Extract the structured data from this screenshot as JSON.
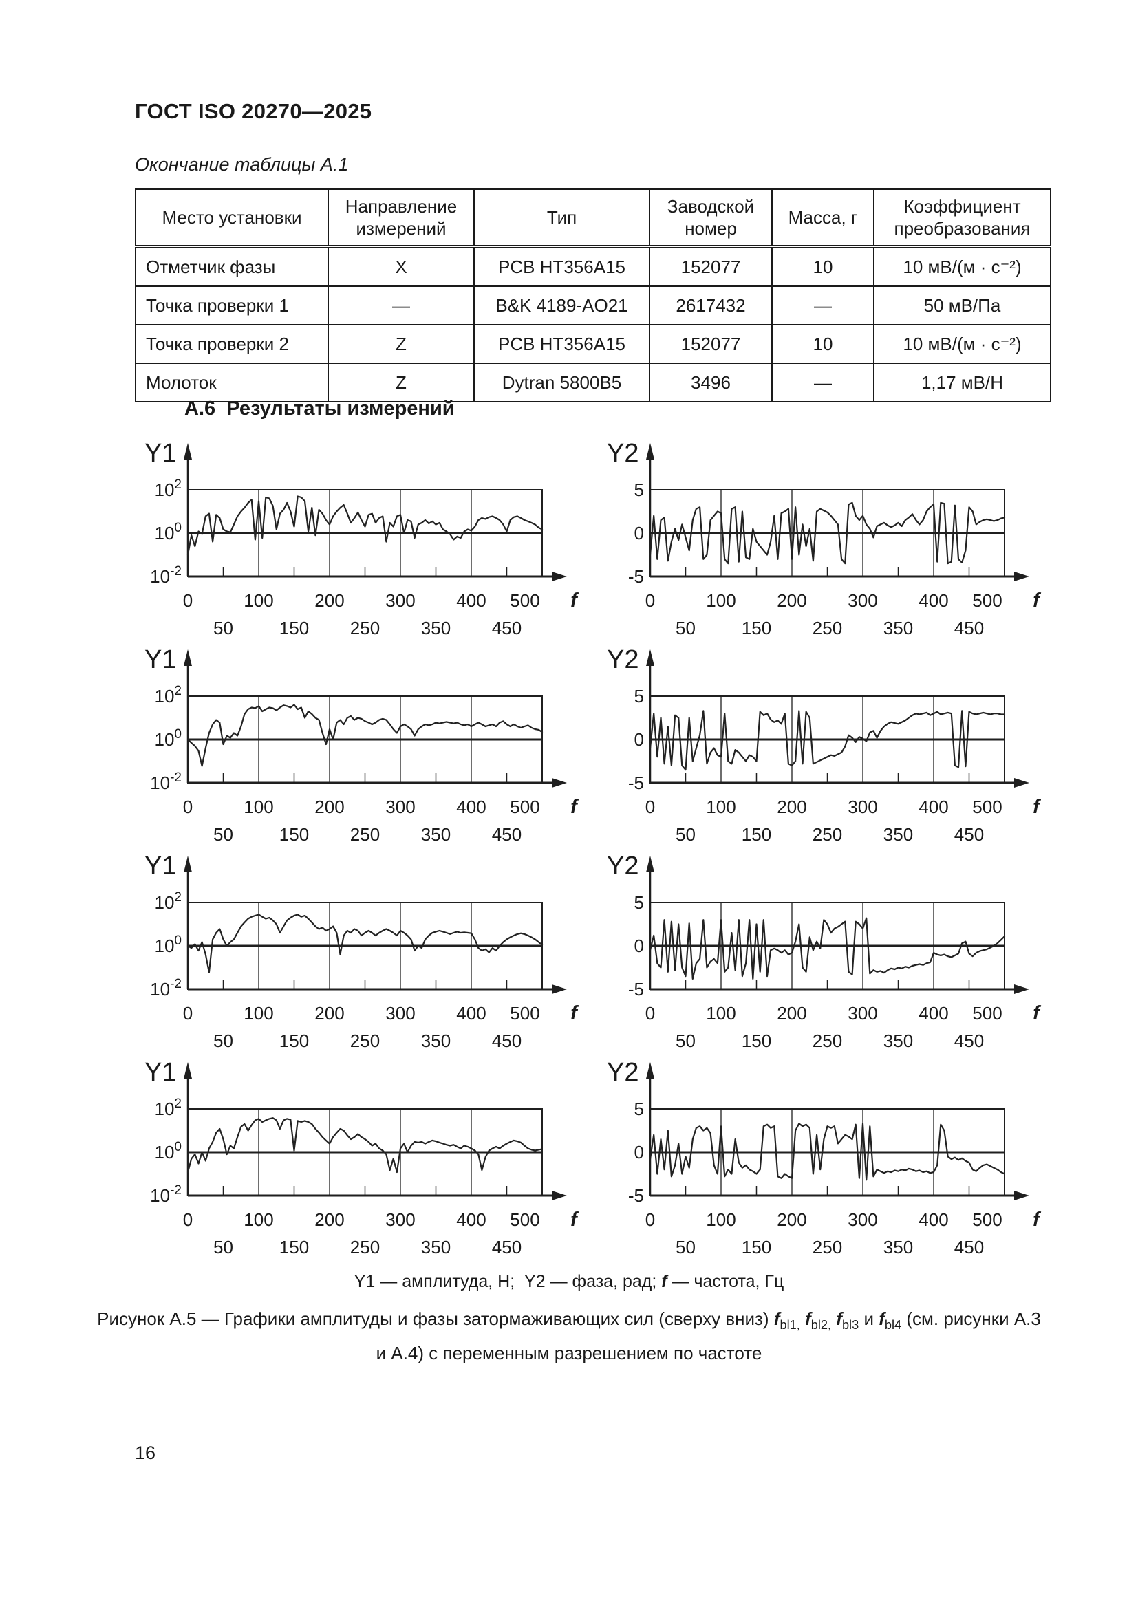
{
  "page": {
    "standard_number": "ГОСТ ISO 20270—2025",
    "table_continuation": "Окончание таблицы А.1",
    "section_heading": "А.6  Результаты измерений",
    "page_number": "16"
  },
  "table": {
    "headers": [
      "Место установки",
      "Направление измерений",
      "Тип",
      "Заводской номер",
      "Масса, г",
      "Коэффициент преобразования"
    ],
    "rows": [
      [
        "Отметчик фазы",
        "X",
        "PCB HT356A15",
        "152077",
        "10",
        "10 мВ/(м · с⁻²)"
      ],
      [
        "Точка проверки 1",
        "—",
        "B&K 4189-AO21",
        "2617432",
        "—",
        "50 мВ/Па"
      ],
      [
        "Точка проверки 2",
        "Z",
        "PCB HT356A15",
        "152077",
        "10",
        "10 мВ/(м · с⁻²)"
      ],
      [
        "Молоток",
        "Z",
        "Dytran 5800B5",
        "3496",
        "—",
        "1,17 мВ/Н"
      ]
    ]
  },
  "legend": {
    "p1": "Y1 — амплитуда, Н;  Y2 — фаза, рад; ",
    "f_symbol": "f",
    "p2": " — частота, Гц"
  },
  "caption": {
    "p1": "Рисунок А.5 — Графики амплитуды и фазы затормаживающих сил (сверху вниз) ",
    "f_symbol": "f",
    "sub1": "bl1,",
    "sep1": " ",
    "sub2": "bl2,",
    "sep2": " ",
    "sub3": "bl3",
    "sep3": " и ",
    "sub4": "bl4",
    "p2": " (см. рисунки А.3",
    "line2": "и А.4) с переменным разрешением по частоте"
  },
  "chart_data": [
    {
      "id": "fbl1-amplitude",
      "type": "line",
      "title": "Y1",
      "ylabel": "амплитуда, Н",
      "y_scale": "log",
      "ylim": [
        0.01,
        100
      ],
      "ytick_labels": [
        "10^2",
        "10^0",
        "10^-2"
      ],
      "xlabel": "f",
      "xlim": [
        0,
        500
      ],
      "x_step": 5,
      "xticks_major": [
        0,
        100,
        200,
        300,
        400,
        500
      ],
      "xticks_minor": [
        50,
        150,
        250,
        350,
        450
      ],
      "values": [
        0.1,
        0.8,
        0.25,
        1.2,
        0.9,
        6,
        8,
        0.4,
        7,
        5,
        1.5,
        1.2,
        1.1,
        2.5,
        6,
        10,
        15,
        25,
        35,
        0.5,
        30,
        0.6,
        45,
        40,
        18,
        1.5,
        8,
        12,
        25,
        10,
        2,
        50,
        45,
        30,
        1.2,
        15,
        0.8,
        12,
        8,
        4,
        2.5,
        6,
        10,
        15,
        20,
        8,
        3,
        5,
        9,
        4,
        2,
        7,
        8,
        3,
        5,
        6,
        0.4,
        3,
        2,
        6,
        7,
        1,
        4,
        3.5,
        0.6,
        2.5,
        3,
        4,
        2.8,
        3.5,
        2.5,
        3,
        1.5,
        1.2,
        0.9,
        0.5,
        0.7,
        0.6,
        1.2,
        1.5,
        1.3,
        2,
        4,
        5,
        4.5,
        5.5,
        6,
        5,
        4,
        2.5,
        1.2,
        4,
        5.5,
        6,
        5,
        4,
        3.5,
        3,
        2.5,
        1.8,
        1.5
      ]
    },
    {
      "id": "fbl1-phase",
      "type": "line",
      "title": "Y2",
      "ylabel": "фаза, рад",
      "y_scale": "linear",
      "ylim": [
        -5,
        5
      ],
      "ytick_labels": [
        "5",
        "0",
        "-5"
      ],
      "xlabel": "f",
      "xlim": [
        0,
        500
      ],
      "x_step": 5,
      "xticks_major": [
        0,
        100,
        200,
        300,
        400,
        500
      ],
      "xticks_minor": [
        50,
        150,
        250,
        350,
        450
      ],
      "values": [
        -2.5,
        2,
        -3,
        1.5,
        1.8,
        -3.2,
        -1,
        0.5,
        -0.8,
        1,
        -0.5,
        -2,
        1.5,
        2.8,
        3,
        -3,
        -2.5,
        1.5,
        2,
        2.5,
        2.3,
        -3,
        -3.5,
        2.8,
        3,
        -3.3,
        2.5,
        -2.8,
        -3,
        0.5,
        -1,
        -1.5,
        -2,
        -2.5,
        -1,
        2,
        -3,
        2.3,
        2.5,
        2.8,
        -3,
        3,
        -2.5,
        1,
        -1.5,
        0.5,
        -3.2,
        2.5,
        2.8,
        2.6,
        2.4,
        2,
        1.5,
        1,
        -3,
        -3.5,
        3.3,
        3.5,
        2,
        1.5,
        2,
        1,
        0.5,
        -0.5,
        0.8,
        1,
        1.2,
        0.9,
        0.7,
        0.9,
        1.2,
        0.8,
        1.5,
        1.8,
        2.2,
        1.5,
        1,
        1.5,
        2.5,
        3,
        3.3,
        -3.3,
        3.5,
        3.4,
        -3.5,
        -3.3,
        3.2,
        -3,
        -3.4,
        -2,
        3,
        2.5,
        1,
        1.3,
        1.5,
        1.6,
        1.5,
        1.4,
        1.5,
        1.7,
        1.8
      ]
    },
    {
      "id": "fbl2-amplitude",
      "type": "line",
      "title": "Y1",
      "ylabel": "амплитуда, Н",
      "y_scale": "log",
      "ylim": [
        0.01,
        100
      ],
      "ytick_labels": [
        "10^2",
        "10^0",
        "10^-2"
      ],
      "xlabel": "f",
      "xlim": [
        0,
        500
      ],
      "x_step": 5,
      "xticks_major": [
        0,
        100,
        200,
        300,
        400,
        500
      ],
      "xticks_minor": [
        50,
        150,
        250,
        350,
        450
      ],
      "values": [
        1,
        0.7,
        0.5,
        0.3,
        0.06,
        0.4,
        2,
        5,
        8,
        6,
        0.6,
        1.5,
        1.2,
        2,
        1.5,
        4,
        15,
        25,
        30,
        28,
        35,
        20,
        25,
        30,
        28,
        22,
        30,
        38,
        35,
        30,
        40,
        25,
        30,
        10,
        20,
        15,
        10,
        8,
        2,
        0.6,
        3,
        1,
        6,
        8,
        5,
        10,
        12,
        8,
        10,
        9,
        7,
        6,
        5,
        6,
        8,
        9,
        8,
        5,
        3,
        2,
        4,
        5,
        4,
        3,
        1.5,
        3,
        4,
        5,
        4.5,
        5,
        6,
        5.5,
        6,
        6.5,
        6,
        5.5,
        6,
        5,
        4.5,
        5,
        4,
        5,
        6,
        5,
        4,
        4.5,
        5,
        4,
        6,
        7,
        5,
        4,
        5,
        4,
        3.5,
        4,
        4.5,
        3.5,
        3,
        2.8,
        2.2
      ]
    },
    {
      "id": "fbl2-phase",
      "type": "line",
      "title": "Y2",
      "ylabel": "фаза, рад",
      "y_scale": "linear",
      "ylim": [
        -5,
        5
      ],
      "ytick_labels": [
        "5",
        "0",
        "-5"
      ],
      "xlabel": "f",
      "xlim": [
        0,
        500
      ],
      "x_step": 5,
      "xticks_major": [
        0,
        100,
        200,
        300,
        400,
        500
      ],
      "xticks_minor": [
        50,
        150,
        250,
        350,
        450
      ],
      "values": [
        -1,
        3,
        -2,
        2.5,
        -2.8,
        1.5,
        -3,
        2.8,
        2.5,
        -3,
        -3.5,
        2.5,
        -2.5,
        -1,
        0.5,
        3.3,
        -2.8,
        -1.5,
        -1,
        -1.8,
        -2,
        3,
        -2.5,
        -2.8,
        -1.2,
        -1.5,
        -2,
        -2.5,
        -1.8,
        -2,
        -2.5,
        3.2,
        2.8,
        3,
        2.3,
        2,
        2.2,
        1.8,
        3,
        -2.8,
        -3,
        -2.5,
        3.3,
        -2.8,
        3.2,
        2.5,
        -2.8,
        -2.6,
        -2.4,
        -2.2,
        -2,
        -1.8,
        -1.9,
        -1.7,
        -1.5,
        -0.8,
        0.5,
        0.2,
        -0.3,
        0.3,
        0.1,
        -0.2,
        0.8,
        1,
        0.2,
        1,
        1.5,
        1.8,
        2,
        1.9,
        1.8,
        2,
        2.2,
        2.5,
        2.8,
        3,
        2.9,
        3,
        3.1,
        2.8,
        3,
        3.2,
        2.9,
        3,
        3.1,
        3,
        -3,
        -3.2,
        3.3,
        -3.1,
        3.2,
        3,
        2.9,
        3,
        3.1,
        3,
        2.9,
        3,
        3,
        2.9,
        2.9
      ]
    },
    {
      "id": "fbl3-amplitude",
      "type": "line",
      "title": "Y1",
      "ylabel": "амплитуда, Н",
      "y_scale": "log",
      "ylim": [
        0.01,
        100
      ],
      "ytick_labels": [
        "10^2",
        "10^0",
        "10^-2"
      ],
      "xlabel": "f",
      "xlim": [
        0,
        500
      ],
      "x_step": 5,
      "xticks_major": [
        0,
        100,
        200,
        300,
        400,
        500
      ],
      "xticks_minor": [
        50,
        150,
        250,
        350,
        450
      ],
      "values": [
        1,
        0.8,
        1.2,
        0.6,
        1.5,
        0.4,
        0.06,
        2,
        4,
        6,
        2,
        1,
        1.5,
        2,
        4,
        8,
        12,
        18,
        22,
        25,
        28,
        22,
        18,
        20,
        15,
        10,
        4,
        8,
        15,
        20,
        25,
        28,
        22,
        25,
        18,
        12,
        8,
        6,
        7,
        5,
        6,
        8,
        4,
        0.4,
        3,
        5,
        4,
        6,
        5,
        3,
        4,
        5,
        4,
        3,
        4,
        5,
        6,
        5,
        4,
        3,
        5,
        4,
        3,
        2,
        0.6,
        1,
        0.8,
        2,
        3,
        4,
        4.5,
        5,
        4.5,
        4,
        3.5,
        4,
        4.5,
        4,
        4.2,
        4,
        3.8,
        2,
        0.8,
        0.6,
        0.7,
        0.5,
        0.8,
        0.6,
        1,
        1.5,
        2,
        2.5,
        3,
        3.5,
        3.8,
        3.5,
        3,
        2.5,
        2,
        1.5,
        1.1
      ]
    },
    {
      "id": "fbl3-phase",
      "type": "line",
      "title": "Y2",
      "ylabel": "фаза, рад",
      "y_scale": "linear",
      "ylim": [
        -5,
        5
      ],
      "ytick_labels": [
        "5",
        "0",
        "-5"
      ],
      "xlabel": "f",
      "xlim": [
        0,
        500
      ],
      "x_step": 5,
      "xticks_major": [
        0,
        100,
        200,
        300,
        400,
        500
      ],
      "xticks_minor": [
        50,
        150,
        250,
        350,
        450
      ],
      "values": [
        -0.5,
        1.2,
        -2,
        -2.5,
        3,
        -3,
        2.8,
        -2.8,
        2.5,
        -2.5,
        -3.5,
        2.6,
        -3.8,
        -2,
        -1.5,
        3,
        -2.5,
        -1.8,
        -1.5,
        -2,
        3,
        -3,
        -2.5,
        1.5,
        -2.8,
        3,
        -3.5,
        -2,
        3,
        -3.8,
        2.5,
        -3,
        3,
        -3.5,
        -0.5,
        -0.3,
        -0.5,
        -0.8,
        -0.5,
        -1,
        -0.8,
        0.5,
        2.5,
        -2.5,
        -3,
        1,
        -0.5,
        0.5,
        -0.3,
        3,
        2.5,
        1.5,
        2,
        2.2,
        2.5,
        2.8,
        -3,
        -3.3,
        2.8,
        2.5,
        2,
        3.2,
        -3.2,
        -2.8,
        -3,
        -2.9,
        -3.1,
        -2.8,
        -2.6,
        -2.7,
        -2.5,
        -2.6,
        -2.4,
        -2.5,
        -2.3,
        -2.2,
        -2.1,
        -2.2,
        -2,
        -1.9,
        -0.8,
        -1,
        -1.1,
        -1,
        -1.2,
        -1.3,
        -1.1,
        -0.9,
        0.3,
        0.5,
        -0.9,
        -1.2,
        -0.8,
        -0.6,
        -0.5,
        -0.4,
        -0.2,
        0,
        0.3,
        0.7,
        1.1
      ]
    },
    {
      "id": "fbl4-amplitude",
      "type": "line",
      "title": "Y1",
      "ylabel": "амплитуда, Н",
      "y_scale": "log",
      "ylim": [
        0.01,
        100
      ],
      "ytick_labels": [
        "10^2",
        "10^0",
        "10^-2"
      ],
      "xlabel": "f",
      "xlim": [
        0,
        500
      ],
      "x_step": 5,
      "xticks_major": [
        0,
        100,
        200,
        300,
        400,
        500
      ],
      "xticks_minor": [
        50,
        150,
        250,
        350,
        450
      ],
      "values": [
        0.12,
        0.5,
        0.8,
        0.3,
        1,
        0.4,
        1.5,
        3,
        8,
        12,
        4,
        0.8,
        2,
        1.5,
        5,
        15,
        20,
        10,
        18,
        30,
        35,
        25,
        30,
        35,
        38,
        30,
        12,
        30,
        35,
        32,
        1.2,
        28,
        25,
        28,
        25,
        20,
        12,
        8,
        5,
        3.5,
        2.5,
        5,
        8,
        12,
        10,
        6,
        4,
        5,
        7,
        5,
        4,
        3,
        2,
        2.5,
        1.5,
        1.2,
        0.8,
        0.15,
        0.5,
        0.12,
        1.5,
        2.5,
        1,
        2,
        3,
        2.8,
        3,
        2.5,
        3,
        3.5,
        3.2,
        2.8,
        2.5,
        2.2,
        2,
        2.2,
        1.8,
        1.5,
        2,
        1.8,
        1.5,
        1.2,
        0.8,
        0.15,
        0.6,
        1.2,
        1.5,
        1.8,
        1.5,
        2,
        2.5,
        3,
        3.5,
        3.2,
        2.8,
        2,
        1.5,
        1.3,
        1.2,
        1.3,
        1.4
      ]
    },
    {
      "id": "fbl4-phase",
      "type": "line",
      "title": "Y2",
      "ylabel": "фаза, рад",
      "y_scale": "linear",
      "ylim": [
        -5,
        5
      ],
      "ytick_labels": [
        "5",
        "0",
        "-5"
      ],
      "xlabel": "f",
      "xlim": [
        0,
        500
      ],
      "x_step": 5,
      "xticks_major": [
        0,
        100,
        200,
        300,
        400,
        500
      ],
      "xticks_minor": [
        50,
        150,
        250,
        350,
        450
      ],
      "values": [
        -0.8,
        2,
        -2.5,
        1.5,
        -2,
        2.5,
        -2.8,
        -1.5,
        1,
        -2.5,
        -0.5,
        -1.8,
        1.5,
        2.8,
        3,
        2.5,
        2.8,
        2.2,
        -1.5,
        -2.5,
        3,
        -2.8,
        -2,
        -2.5,
        1.5,
        -1.2,
        -1.8,
        -1.5,
        -2,
        -2.2,
        -2.5,
        -2,
        3,
        3.2,
        2.8,
        3,
        -2.8,
        -3,
        -2.5,
        -2.8,
        -3,
        2.5,
        3.3,
        3,
        3.2,
        2.8,
        -2.5,
        2,
        -2,
        1.5,
        3,
        2.8,
        3,
        1,
        1.5,
        2,
        1.8,
        1.5,
        3.2,
        -3,
        3.3,
        -3.2,
        3,
        -2.8,
        -2,
        -2.2,
        -2.4,
        -2.2,
        -2.3,
        -2.1,
        -2.2,
        -2,
        -2.1,
        -1.9,
        -2,
        -2.2,
        -2.1,
        -2.3,
        -2.2,
        -2.4,
        -2.3,
        -1.5,
        3.2,
        2.5,
        -0.5,
        -0.8,
        -0.6,
        -0.9,
        -0.7,
        -1,
        -1.2,
        -2,
        -2.2,
        -1.8,
        -1.5,
        -1.4,
        -1.6,
        -1.8,
        -2,
        -2.3,
        -2.5
      ]
    }
  ]
}
